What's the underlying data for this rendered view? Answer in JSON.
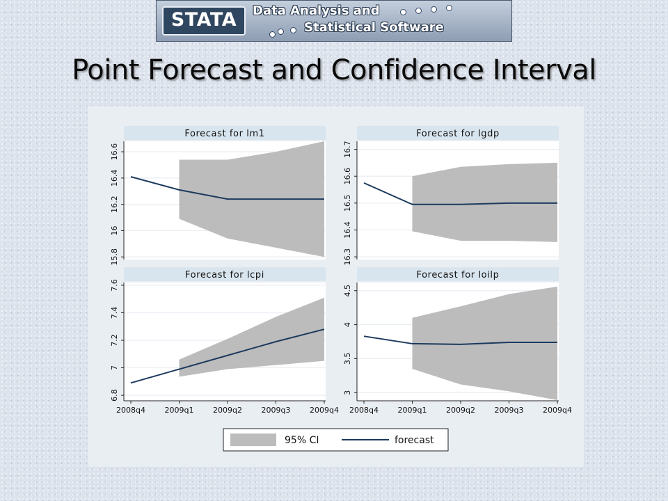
{
  "header": {
    "logo_text": "STATA",
    "tagline_line1": "Data Analysis and",
    "tagline_line2": "Statistical Software"
  },
  "slide": {
    "title": "Point Forecast and Confidence Interval"
  },
  "colors": {
    "ci_band": "#bcbcbc",
    "forecast_line": "#1c3a5e",
    "panel_title_bg": "#d9e5ee",
    "chart_bg": "#e9eef3",
    "grid": "#e9eef3"
  },
  "chart_data": [
    {
      "type": "area",
      "title": "Forecast for lm1",
      "categories": [
        "2008q4",
        "2009q1",
        "2009q2",
        "2009q3",
        "2009q4"
      ],
      "yticks": [
        "15.8",
        "16",
        "16.2",
        "16.4",
        "16.6"
      ],
      "ylim": [
        15.78,
        16.68
      ],
      "series": [
        {
          "name": "95% CI",
          "lower": [
            null,
            16.09,
            15.94,
            15.87,
            15.8
          ],
          "upper": [
            null,
            16.54,
            16.54,
            16.6,
            16.68
          ]
        },
        {
          "name": "forecast",
          "values": [
            16.41,
            16.31,
            16.24,
            16.24,
            16.24
          ]
        }
      ]
    },
    {
      "type": "area",
      "title": "Forecast for lgdp",
      "categories": [
        "2008q4",
        "2009q1",
        "2009q2",
        "2009q3",
        "2009q4"
      ],
      "yticks": [
        "16.3",
        "16.4",
        "16.5",
        "16.6",
        "16.7"
      ],
      "ylim": [
        16.29,
        16.73
      ],
      "series": [
        {
          "name": "95% CI",
          "lower": [
            null,
            16.395,
            16.36,
            16.36,
            16.355
          ],
          "upper": [
            null,
            16.6,
            16.635,
            16.645,
            16.65
          ]
        },
        {
          "name": "forecast",
          "values": [
            16.575,
            16.495,
            16.495,
            16.5,
            16.5
          ]
        }
      ]
    },
    {
      "type": "area",
      "title": "Forecast for lcpi",
      "categories": [
        "2008q4",
        "2009q1",
        "2009q2",
        "2009q3",
        "2009q4"
      ],
      "yticks": [
        "6.8",
        "7",
        "7.2",
        "7.4",
        "7.6"
      ],
      "ylim": [
        6.76,
        7.62
      ],
      "series": [
        {
          "name": "95% CI",
          "lower": [
            null,
            6.935,
            6.99,
            7.02,
            7.05
          ],
          "upper": [
            null,
            7.06,
            7.21,
            7.37,
            7.51
          ]
        },
        {
          "name": "forecast",
          "values": [
            6.89,
            6.99,
            7.09,
            7.19,
            7.28
          ]
        }
      ]
    },
    {
      "type": "area",
      "title": "Forecast for loilp",
      "categories": [
        "2008q4",
        "2009q1",
        "2009q2",
        "2009q3",
        "2009q4"
      ],
      "yticks": [
        "3",
        "3.5",
        "4",
        "4.5"
      ],
      "ylim": [
        2.88,
        4.62
      ],
      "series": [
        {
          "name": "95% CI",
          "lower": [
            null,
            3.35,
            3.12,
            3.02,
            2.89
          ],
          "upper": [
            null,
            4.1,
            4.27,
            4.45,
            4.56
          ]
        },
        {
          "name": "forecast",
          "values": [
            3.83,
            3.72,
            3.71,
            3.74,
            3.74
          ]
        }
      ]
    }
  ],
  "legend": {
    "position": "bottom",
    "items": [
      {
        "label": "95% CI",
        "kind": "band"
      },
      {
        "label": "forecast",
        "kind": "line"
      }
    ]
  }
}
